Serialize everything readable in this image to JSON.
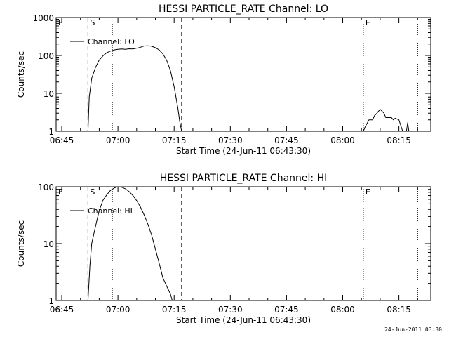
{
  "footer": {
    "timestamp": "24-Jun-2011 03:30"
  },
  "chart_data": [
    {
      "type": "line",
      "title": "HESSI PARTICLE_RATE Channel: LO",
      "xlabel": "Start Time (24-Jun-11 06:43:30)",
      "ylabel": "Counts/sec",
      "yscale": "log",
      "xlim": [
        "06:43:30",
        "08:23:30"
      ],
      "ylim": [
        1,
        1000
      ],
      "x_ticks": [
        "06:45",
        "07:00",
        "07:15",
        "07:30",
        "07:45",
        "08:00",
        "08:15"
      ],
      "y_ticks": [
        "1",
        "10",
        "100",
        "1000"
      ],
      "legend": "Channel: LO",
      "legend_position": "top-left",
      "markers": [
        {
          "label": "E",
          "time": "06:43:30",
          "style": "dotted"
        },
        {
          "label": "S",
          "time": "06:52:00",
          "style": "dashed"
        },
        {
          "label": "",
          "time": "06:58:30",
          "style": "dotted"
        },
        {
          "label": "",
          "time": "07:17:00",
          "style": "dashed"
        },
        {
          "label": "E",
          "time": "08:05:30",
          "style": "dotted"
        },
        {
          "label": "",
          "time": "08:20:00",
          "style": "dotted"
        }
      ],
      "series": [
        {
          "segments": [
            {
              "x": [
                "06:52:00",
                "06:52:20",
                "06:53:00",
                "06:54:00",
                "06:55:00",
                "06:56:00",
                "06:57:00",
                "06:58:00",
                "06:59:00",
                "07:00:00",
                "07:01:00",
                "07:02:00",
                "07:03:00",
                "07:04:00",
                "07:05:00",
                "07:06:00",
                "07:07:00",
                "07:08:00",
                "07:09:00",
                "07:10:00",
                "07:11:00",
                "07:12:00",
                "07:13:00",
                "07:14:00",
                "07:15:00",
                "07:16:00",
                "07:16:30",
                "07:17:00"
              ],
              "y": [
                1,
                8,
                25,
                48,
                75,
                98,
                118,
                130,
                140,
                145,
                148,
                145,
                150,
                148,
                155,
                165,
                178,
                180,
                175,
                160,
                140,
                110,
                75,
                40,
                15,
                4,
                1.8,
                1
              ]
            },
            {
              "x": [
                "08:05:30",
                "08:06:00",
                "08:07:00",
                "08:08:00",
                "08:08:30",
                "08:09:00",
                "08:10:00",
                "08:11:00",
                "08:11:30",
                "08:12:00",
                "08:13:00",
                "08:13:30",
                "08:14:00",
                "08:15:00",
                "08:16:00"
              ],
              "y": [
                1,
                1.3,
                2.0,
                2.0,
                2.6,
                2.9,
                3.8,
                3.0,
                2.3,
                2.3,
                2.3,
                2.0,
                2.2,
                2.0,
                1
              ]
            },
            {
              "x": [
                "08:17:00",
                "08:17:20",
                "08:17:40"
              ],
              "y": [
                1,
                1.7,
                1
              ]
            }
          ]
        }
      ]
    },
    {
      "type": "line",
      "title": "HESSI PARTICLE_RATE Channel: HI",
      "xlabel": "Start Time (24-Jun-11 06:43:30)",
      "ylabel": "Counts/sec",
      "yscale": "log",
      "xlim": [
        "06:43:30",
        "08:23:30"
      ],
      "ylim": [
        1,
        100
      ],
      "x_ticks": [
        "06:45",
        "07:00",
        "07:15",
        "07:30",
        "07:45",
        "08:00",
        "08:15"
      ],
      "y_ticks": [
        "1",
        "10",
        "100"
      ],
      "legend": "Channel: HI",
      "legend_position": "top-left",
      "markers": [
        {
          "label": "E",
          "time": "06:43:30",
          "style": "dotted"
        },
        {
          "label": "S",
          "time": "06:52:00",
          "style": "dashed"
        },
        {
          "label": "",
          "time": "06:58:30",
          "style": "dotted"
        },
        {
          "label": "",
          "time": "07:17:00",
          "style": "dashed"
        },
        {
          "label": "E",
          "time": "08:05:30",
          "style": "dotted"
        },
        {
          "label": "",
          "time": "08:20:00",
          "style": "dotted"
        }
      ],
      "series": [
        {
          "segments": [
            {
              "x": [
                "06:52:00",
                "06:52:30",
                "06:53:00",
                "06:54:00",
                "06:55:00",
                "06:56:00",
                "06:57:00",
                "06:58:00",
                "06:59:00",
                "07:00:00",
                "07:01:00",
                "07:02:00",
                "07:03:00",
                "07:04:00",
                "07:05:00",
                "07:06:00",
                "07:07:00",
                "07:08:00",
                "07:09:00",
                "07:10:00",
                "07:11:00",
                "07:12:00",
                "07:13:00",
                "07:14:00",
                "07:14:30"
              ],
              "y": [
                1,
                4,
                10,
                20,
                38,
                58,
                72,
                86,
                95,
                100,
                98,
                92,
                82,
                70,
                57,
                44,
                32,
                22,
                14,
                8,
                4.5,
                2.5,
                1.8,
                1.3,
                1
              ]
            }
          ]
        }
      ]
    }
  ]
}
